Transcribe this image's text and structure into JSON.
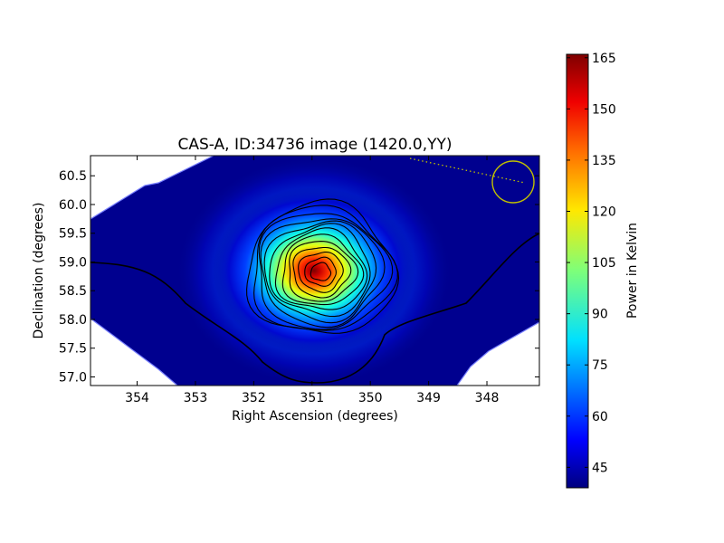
{
  "chart_data": {
    "type": "heatmap",
    "title": "CAS-A, ID:34736 image (1420.0,YY)",
    "xlabel": "Right Ascension (degrees)",
    "ylabel": "Declination (degrees)",
    "xlim": [
      354.8,
      347.1
    ],
    "ylim": [
      56.85,
      60.85
    ],
    "xticks": [
      "354",
      "353",
      "352",
      "351",
      "350",
      "349",
      "348"
    ],
    "yticks": [
      "57.0",
      "57.5",
      "58.0",
      "58.5",
      "59.0",
      "59.5",
      "60.0",
      "60.5"
    ],
    "colormap": "jet",
    "colorbar": {
      "label": "Power in Kelvin",
      "min": 39,
      "max": 166,
      "ticks": [
        "45",
        "60",
        "75",
        "90",
        "105",
        "120",
        "135",
        "150",
        "165"
      ]
    },
    "source": {
      "name": "CAS-A",
      "ra": 350.85,
      "dec": 58.82,
      "peak_kelvin": 165,
      "background_kelvin": 40
    },
    "contour_levels_kelvin": [
      44,
      52,
      62,
      72,
      82,
      92,
      102,
      112,
      122,
      132,
      142,
      152,
      160
    ],
    "beam_marker": {
      "ra": 347.45,
      "dec": 60.38
    },
    "colors": {
      "beam_circle": "#c0c000",
      "contour": "#000000",
      "frame": "#000000"
    }
  }
}
